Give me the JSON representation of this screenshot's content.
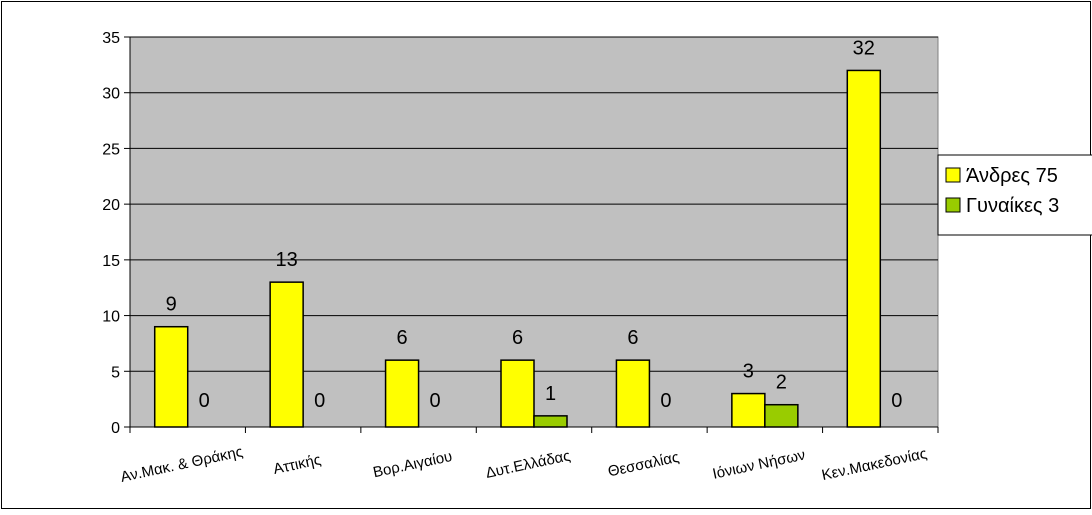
{
  "chart_data": {
    "type": "bar",
    "title": "",
    "xlabel": "",
    "ylabel": "",
    "ylim": [
      0,
      35
    ],
    "yticks": [
      0,
      5,
      10,
      15,
      20,
      25,
      30,
      35
    ],
    "grid": true,
    "legend_position": "right",
    "categories": [
      "Αν.Μακ. & Θράκης",
      "Αττικής",
      "Βορ.Αιγαίου",
      "Δυτ.Ελλάδας",
      "Θεσσαλίας",
      "Ιόνιων Νήσων",
      "Κεν.Μακεδονίας"
    ],
    "series": [
      {
        "name": "Άνδρες 75",
        "values": [
          9,
          13,
          6,
          6,
          6,
          3,
          32
        ],
        "color": "#ffff00"
      },
      {
        "name": "Γυναίκες 3",
        "values": [
          0,
          0,
          0,
          1,
          0,
          2,
          0
        ],
        "color": "#99cc00"
      }
    ],
    "colors": {
      "plot_background": "#c0c0c0",
      "gridline": "#000000",
      "border": "#000000"
    }
  }
}
